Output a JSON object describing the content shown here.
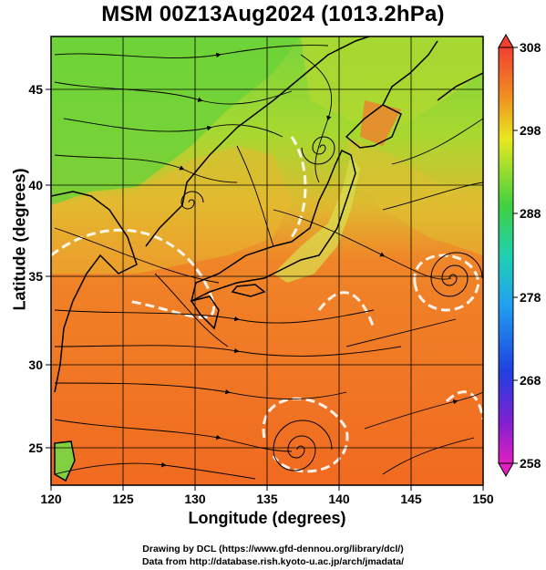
{
  "title": "MSM 00Z13Aug2024 (1013.2hPa)",
  "x_axis": {
    "label": "Longitude (degrees)",
    "range": [
      120,
      150
    ],
    "ticks": [
      "120",
      "125",
      "130",
      "135",
      "140",
      "145",
      "150"
    ]
  },
  "y_axis": {
    "label": "Latitude  (degrees)",
    "range": [
      22.5,
      47.8
    ],
    "ticks": [
      "25",
      "30",
      "35",
      "40",
      "45"
    ]
  },
  "colorbar": {
    "range": [
      258,
      308
    ],
    "ticks": [
      "308",
      "298",
      "288",
      "278",
      "268",
      "258"
    ]
  },
  "credits": {
    "line1": "Drawing by DCL (https://www.gfd-dennou.org/library/dcl/)",
    "line2": "Data from http://database.rish.kyoto-u.ac.jp/arch/jmadata/"
  },
  "colors": {
    "warm": "#f06020",
    "land_green": "#70d030",
    "yellow": "#e8d030"
  }
}
